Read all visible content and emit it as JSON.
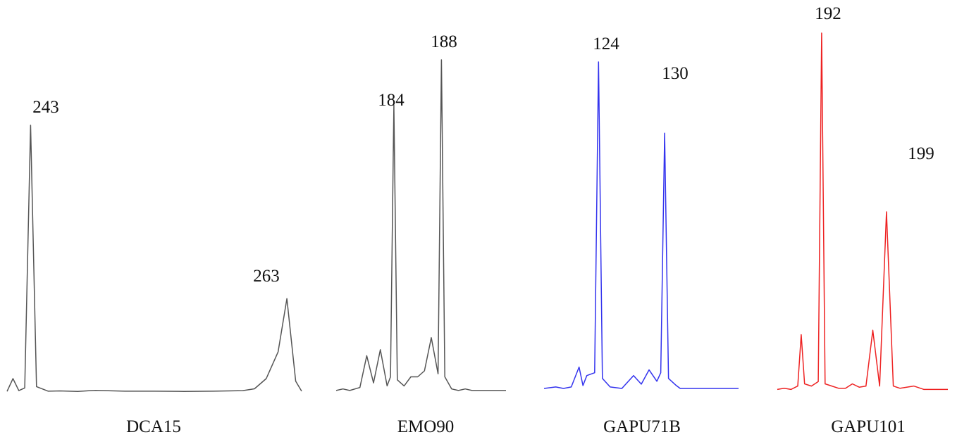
{
  "chart_data": [
    {
      "type": "line",
      "marker": "DCA15",
      "color": "#555555",
      "peaks": [
        243,
        263
      ],
      "x": [
        0,
        2,
        4,
        6,
        8,
        10,
        14,
        18,
        24,
        30,
        40,
        50,
        60,
        70,
        80,
        84,
        88,
        92,
        95,
        98,
        100
      ],
      "y": [
        0.2,
        5,
        0.5,
        1.5,
        100,
        2,
        0.3,
        0.4,
        0.2,
        0.6,
        0.3,
        0.3,
        0.2,
        0.3,
        0.5,
        1.2,
        5,
        15,
        35,
        4,
        0.3
      ]
    },
    {
      "type": "line",
      "marker": "EMO90",
      "color": "#555555",
      "peaks": [
        184,
        188
      ],
      "x": [
        0,
        4,
        8,
        14,
        18,
        22,
        26,
        30,
        32,
        34,
        36,
        40,
        44,
        48,
        52,
        56,
        60,
        62,
        64,
        68,
        72,
        76,
        80,
        88,
        100
      ],
      "y": [
        0.5,
        1,
        0.5,
        1.5,
        12,
        3,
        14,
        2,
        5,
        95,
        4,
        2,
        5,
        5,
        7,
        18,
        6,
        110,
        5,
        1,
        0.5,
        1,
        0.5,
        0.5,
        0.5
      ]
    },
    {
      "type": "line",
      "marker": "GAPU71B",
      "color": "#3333ee",
      "peaks": [
        124,
        130
      ],
      "x": [
        0,
        6,
        10,
        14,
        18,
        20,
        22,
        26,
        28,
        30,
        34,
        40,
        46,
        50,
        54,
        58,
        60,
        62,
        64,
        68,
        70,
        74,
        80,
        88,
        100
      ],
      "y": [
        0.5,
        1,
        0.5,
        1,
        8,
        1.5,
        5,
        6,
        115,
        4,
        1,
        0.5,
        5,
        2,
        7,
        3,
        6,
        90,
        4,
        1.5,
        0.5,
        0.5,
        0.5,
        0.5,
        0.5
      ]
    },
    {
      "type": "line",
      "marker": "GAPU101",
      "color": "#ee2222",
      "peaks": [
        192,
        199
      ],
      "x": [
        0,
        4,
        8,
        12,
        14,
        16,
        20,
        24,
        26,
        28,
        32,
        36,
        40,
        44,
        48,
        52,
        56,
        60,
        64,
        68,
        72,
        80,
        86,
        92,
        100
      ],
      "y": [
        0.5,
        1,
        0.5,
        2,
        25,
        3,
        2,
        4,
        160,
        3,
        2,
        1,
        1,
        3,
        1.5,
        2,
        27,
        2,
        80,
        2,
        1,
        2,
        0.5,
        0.5,
        0.5
      ]
    }
  ]
}
